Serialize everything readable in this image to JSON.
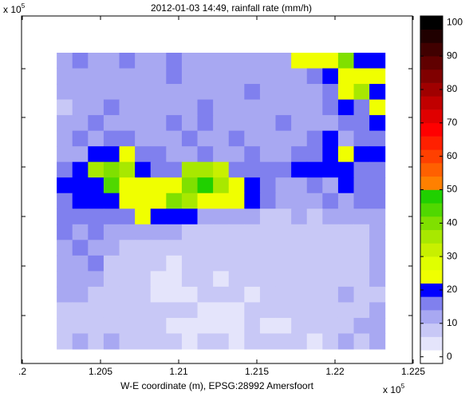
{
  "chart_data": {
    "type": "heatmap",
    "title": "2012-01-03 14:49, rainfall rate (mm/h)",
    "xlabel": "W-E coordinate (m), EPSG:28992 Amersfoort",
    "x_multiplier": {
      "base": "x 10",
      "exponent": "5"
    },
    "y_multiplier": {
      "base": "x 10",
      "exponent": "5"
    },
    "xlim": [
      1.2,
      1.225
    ],
    "xticks": [
      {
        "value": 1.2,
        "label": ".2"
      },
      1.205,
      1.21,
      1.215,
      1.22,
      1.225
    ],
    "xextent": [
      1.2022,
      1.2232
    ],
    "z": [
      [
        12,
        14,
        12,
        11,
        14,
        13,
        12,
        15,
        11,
        12,
        13,
        11,
        12,
        11,
        12,
        24,
        24,
        24,
        40,
        20,
        20
      ],
      [
        11,
        12,
        13,
        11,
        10,
        12,
        11,
        14,
        12,
        11,
        12,
        10,
        11,
        13,
        12,
        11,
        15,
        20,
        24,
        24,
        24
      ],
      [
        10,
        13,
        11,
        12,
        11,
        10,
        12,
        13,
        11,
        12,
        11,
        12,
        14,
        11,
        10,
        12,
        11,
        15,
        24,
        35,
        18
      ],
      [
        8,
        11,
        12,
        14,
        12,
        11,
        13,
        11,
        12,
        14,
        12,
        11,
        13,
        12,
        11,
        10,
        12,
        14,
        20,
        16,
        24
      ],
      [
        11,
        12,
        15,
        13,
        12,
        11,
        12,
        14,
        13,
        15,
        12,
        13,
        11,
        12,
        14,
        13,
        11,
        12,
        15,
        14,
        18
      ],
      [
        12,
        14,
        13,
        15,
        14,
        12,
        13,
        11,
        14,
        12,
        13,
        15,
        12,
        11,
        13,
        12,
        14,
        20,
        11,
        15,
        16
      ],
      [
        13,
        12,
        20,
        18,
        24,
        14,
        15,
        12,
        13,
        14,
        12,
        13,
        14,
        12,
        13,
        14,
        15,
        20,
        24,
        20,
        19
      ],
      [
        15,
        20,
        35,
        40,
        34,
        20,
        16,
        15,
        35,
        35,
        30,
        15,
        16,
        14,
        15,
        18,
        19,
        20,
        20,
        17,
        16
      ],
      [
        20,
        20,
        19,
        42,
        24,
        24,
        24,
        24,
        40,
        46,
        35,
        24,
        20,
        14,
        13,
        12,
        14,
        13,
        20,
        15,
        17
      ],
      [
        16,
        20,
        20,
        20,
        24,
        24,
        24,
        40,
        35,
        24,
        24,
        24,
        18,
        14,
        12,
        13,
        12,
        14,
        13,
        16,
        15
      ],
      [
        14,
        15,
        17,
        16,
        15,
        24,
        20,
        20,
        19,
        11,
        12,
        11,
        10,
        9,
        8,
        10,
        9,
        11,
        12,
        10,
        13
      ],
      [
        15,
        12,
        14,
        11,
        13,
        12,
        11,
        10,
        9,
        8,
        7,
        7,
        6,
        7,
        8,
        7,
        7,
        8,
        7,
        8,
        10
      ],
      [
        13,
        15,
        11,
        10,
        9,
        8,
        8,
        7,
        6,
        6,
        7,
        6,
        6,
        7,
        6,
        7,
        7,
        6,
        7,
        7,
        12
      ],
      [
        11,
        12,
        14,
        8,
        7,
        6,
        6,
        5,
        6,
        7,
        6,
        6,
        7,
        6,
        7,
        6,
        7,
        8,
        7,
        6,
        10
      ],
      [
        12,
        10,
        11,
        7,
        6,
        6,
        5,
        5,
        6,
        6,
        5,
        6,
        7,
        6,
        7,
        6,
        6,
        7,
        9,
        8,
        12
      ],
      [
        10,
        11,
        8,
        8,
        7,
        6,
        5,
        5,
        5,
        6,
        6,
        6,
        5,
        6,
        7,
        7,
        8,
        7,
        10,
        7,
        9
      ],
      [
        7,
        8,
        7,
        6,
        7,
        6,
        7,
        9,
        6,
        5,
        5,
        5,
        6,
        6,
        6,
        6,
        7,
        8,
        7,
        8,
        11
      ],
      [
        6,
        8,
        7,
        9,
        7,
        8,
        6,
        5,
        5,
        5,
        5,
        5,
        6,
        5,
        5,
        6,
        7,
        8,
        9,
        10,
        12
      ],
      [
        8,
        10,
        9,
        11,
        9,
        8,
        7,
        6,
        5,
        6,
        6,
        5,
        6,
        7,
        6,
        7,
        5,
        6,
        12,
        8,
        11
      ]
    ],
    "colorbar": {
      "lim": [
        -2,
        102
      ],
      "ticks": [
        0,
        10,
        20,
        30,
        40,
        50,
        60,
        70,
        80,
        90,
        100
      ],
      "colors": [
        "#ffffff",
        "#e4e4fb",
        "#c8c8f6",
        "#a8a8f2",
        "#8080ee",
        "#0000ff",
        "#f0ff00",
        "#e0ff00",
        "#c8f000",
        "#a8e800",
        "#80e000",
        "#50d800",
        "#20d000",
        "#ff8000",
        "#ff6000",
        "#ff4000",
        "#ff2000",
        "#ff0000",
        "#e00000",
        "#c00000",
        "#a00000",
        "#800000",
        "#600000",
        "#400000",
        "#200000",
        "#000000"
      ]
    }
  }
}
